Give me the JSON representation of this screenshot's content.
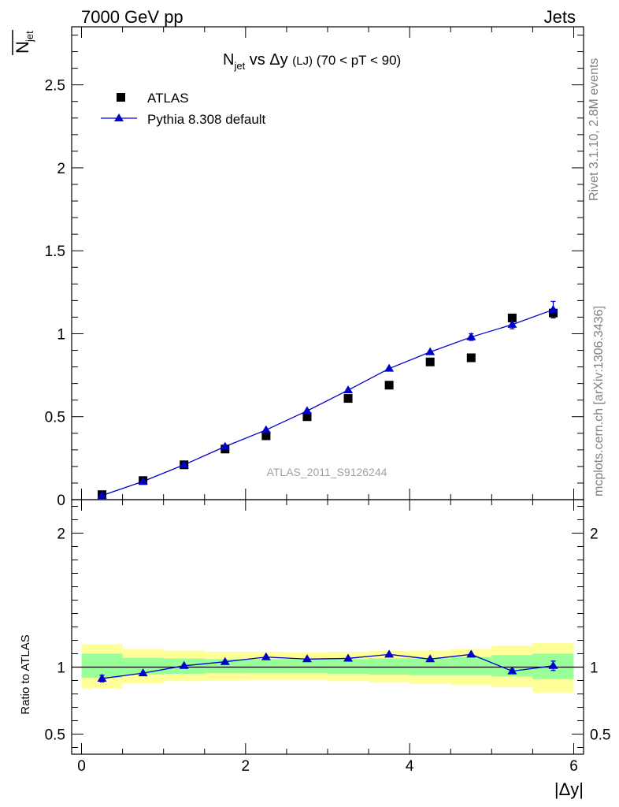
{
  "header": {
    "left": "7000 GeV pp",
    "right": "Jets"
  },
  "side_labels": {
    "rivet": "Rivet 3.1.10,  2.8M events",
    "mcplots": "mcplots.cern.ch [arXiv:1306.3436]"
  },
  "watermark": "ATLAS_2011_S9126244",
  "chart_data": [
    {
      "type": "scatter",
      "title": {
        "main": "N",
        "main_sub": "jet",
        "rest": " vs Δy ",
        "small": "(LJ)",
        "tail": " (70 < pT <  90)"
      },
      "ylabel": {
        "overline": "N",
        "sub": "jet"
      },
      "xlim": [
        -0.12,
        6.12
      ],
      "ylim": [
        0,
        2.85
      ],
      "y_ticks": [
        0,
        0.5,
        1,
        1.5,
        2,
        2.5
      ],
      "y_tick_labels": [
        "0",
        "0.5",
        "1",
        "1.5",
        "2",
        "2.5"
      ],
      "legend_position": "top-left",
      "series": [
        {
          "name": "ATLAS",
          "marker": "square",
          "color": "#000000",
          "x": [
            0.25,
            0.75,
            1.25,
            1.75,
            2.25,
            2.75,
            3.25,
            3.75,
            4.25,
            4.75,
            5.25,
            5.75
          ],
          "y": [
            0.03,
            0.115,
            0.21,
            0.305,
            0.385,
            0.5,
            0.61,
            0.69,
            0.83,
            0.855,
            1.095,
            1.125
          ]
        },
        {
          "name": "Pythia 8.308 default",
          "marker": "triangle",
          "color": "#0000cc",
          "x": [
            0.25,
            0.75,
            1.25,
            1.75,
            2.25,
            2.75,
            3.25,
            3.75,
            4.25,
            4.75,
            5.25,
            5.75
          ],
          "y": [
            0.025,
            0.11,
            0.21,
            0.32,
            0.42,
            0.535,
            0.66,
            0.79,
            0.89,
            0.98,
            1.055,
            1.145
          ],
          "yerr": [
            0,
            0,
            0,
            0,
            0,
            0,
            0,
            0,
            0,
            0.02,
            0.025,
            0.05
          ]
        }
      ]
    },
    {
      "type": "scatter",
      "ylabel": "Ratio to ATLAS",
      "xlabel": "|Δy|",
      "xlim": [
        -0.12,
        6.12
      ],
      "ylim": [
        0.35,
        2.25
      ],
      "x_ticks": [
        0,
        2,
        4,
        6
      ],
      "x_tick_labels": [
        "0",
        "2",
        "4",
        "6"
      ],
      "y_ticks": [
        0.5,
        1,
        2
      ],
      "y_tick_labels": [
        "0.5",
        "1",
        "2"
      ],
      "reference_line": 1,
      "bands": {
        "bin_edges": [
          0,
          0.5,
          1.0,
          1.5,
          2.0,
          2.5,
          3.0,
          3.5,
          4.0,
          4.5,
          5.0,
          5.5,
          6.0
        ],
        "total_lo": [
          0.84,
          0.88,
          0.895,
          0.9,
          0.905,
          0.905,
          0.895,
          0.885,
          0.875,
          0.865,
          0.85,
          0.81
        ],
        "total_hi": [
          1.17,
          1.135,
          1.125,
          1.115,
          1.115,
          1.11,
          1.115,
          1.12,
          1.125,
          1.135,
          1.16,
          1.18
        ],
        "stat_lo": [
          0.92,
          0.945,
          0.95,
          0.955,
          0.955,
          0.955,
          0.95,
          0.945,
          0.94,
          0.94,
          0.93,
          0.91
        ],
        "stat_hi": [
          1.1,
          1.07,
          1.065,
          1.06,
          1.06,
          1.06,
          1.06,
          1.065,
          1.065,
          1.075,
          1.09,
          1.1
        ],
        "total_color": "#ffff99",
        "stat_color": "#99ff99"
      },
      "series": [
        {
          "name": "Pythia 8.308 default",
          "marker": "triangle",
          "color": "#0000cc",
          "x": [
            0.25,
            0.75,
            1.25,
            1.75,
            2.25,
            2.75,
            3.25,
            3.75,
            4.25,
            4.75,
            5.25,
            5.75
          ],
          "y": [
            0.915,
            0.955,
            1.01,
            1.04,
            1.075,
            1.06,
            1.065,
            1.095,
            1.06,
            1.095,
            0.97,
            1.01
          ],
          "yerr": [
            0.025,
            0,
            0,
            0,
            0,
            0,
            0,
            0,
            0,
            0,
            0.015,
            0.035
          ]
        }
      ]
    }
  ]
}
